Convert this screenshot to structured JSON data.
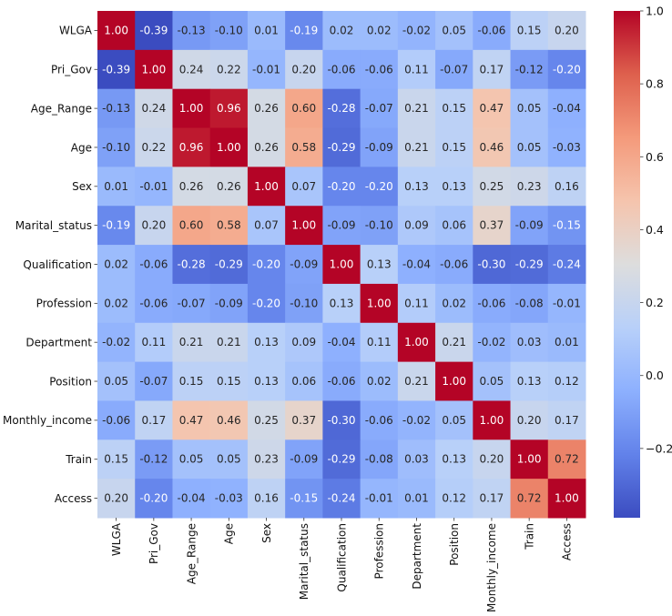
{
  "chart_data": {
    "type": "heatmap",
    "title": "",
    "xlabel": "",
    "ylabel": "",
    "colormap": "coolwarm",
    "vmin": -0.39,
    "vmax": 1.0,
    "annotation_format": "0.00",
    "labels": [
      "WLGA",
      "Pri_Gov",
      "Age_Range",
      "Age",
      "Sex",
      "Marital_status",
      "Qualification",
      "Profession",
      "Department",
      "Position",
      "Monthly_income",
      "Train",
      "Access"
    ],
    "matrix": [
      [
        1.0,
        -0.39,
        -0.13,
        -0.1,
        0.01,
        -0.19,
        0.02,
        0.02,
        -0.02,
        0.05,
        -0.06,
        0.15,
        0.2
      ],
      [
        -0.39,
        1.0,
        0.24,
        0.22,
        -0.01,
        0.2,
        -0.06,
        -0.06,
        0.11,
        -0.07,
        0.17,
        -0.12,
        -0.2
      ],
      [
        -0.13,
        0.24,
        1.0,
        0.96,
        0.26,
        0.6,
        -0.28,
        -0.07,
        0.21,
        0.15,
        0.47,
        0.05,
        -0.04
      ],
      [
        -0.1,
        0.22,
        0.96,
        1.0,
        0.26,
        0.58,
        -0.29,
        -0.09,
        0.21,
        0.15,
        0.46,
        0.05,
        -0.03
      ],
      [
        0.01,
        -0.01,
        0.26,
        0.26,
        1.0,
        0.07,
        -0.2,
        -0.2,
        0.13,
        0.13,
        0.25,
        0.23,
        0.16
      ],
      [
        -0.19,
        0.2,
        0.6,
        0.58,
        0.07,
        1.0,
        -0.09,
        -0.1,
        0.09,
        0.06,
        0.37,
        -0.09,
        -0.15
      ],
      [
        0.02,
        -0.06,
        -0.28,
        -0.29,
        -0.2,
        -0.09,
        1.0,
        0.13,
        -0.04,
        -0.06,
        -0.3,
        -0.29,
        -0.24
      ],
      [
        0.02,
        -0.06,
        -0.07,
        -0.09,
        -0.2,
        -0.1,
        0.13,
        1.0,
        0.11,
        0.02,
        -0.06,
        -0.08,
        -0.01
      ],
      [
        -0.02,
        0.11,
        0.21,
        0.21,
        0.13,
        0.09,
        -0.04,
        0.11,
        1.0,
        0.21,
        -0.02,
        0.03,
        0.01
      ],
      [
        0.05,
        -0.07,
        0.15,
        0.15,
        0.13,
        0.06,
        -0.06,
        0.02,
        0.21,
        1.0,
        0.05,
        0.13,
        0.12
      ],
      [
        -0.06,
        0.17,
        0.47,
        0.46,
        0.25,
        0.37,
        -0.3,
        -0.06,
        -0.02,
        0.05,
        1.0,
        0.2,
        0.17
      ],
      [
        0.15,
        -0.12,
        0.05,
        0.05,
        0.23,
        -0.09,
        -0.29,
        -0.08,
        0.03,
        0.13,
        0.2,
        1.0,
        0.72
      ],
      [
        0.2,
        -0.2,
        -0.04,
        -0.03,
        0.16,
        -0.15,
        -0.24,
        -0.01,
        0.01,
        0.12,
        0.17,
        0.72,
        1.0
      ]
    ],
    "colorbar": {
      "ticks": [
        1.0,
        0.8,
        0.6,
        0.4,
        0.2,
        0.0,
        -0.2
      ],
      "tick_labels": [
        "1.0",
        "0.8",
        "0.6",
        "0.4",
        "0.2",
        "0.0",
        "−0.2"
      ],
      "range": [
        -0.39,
        1.0
      ],
      "placement": "right"
    },
    "grid": false,
    "legend": "none"
  }
}
